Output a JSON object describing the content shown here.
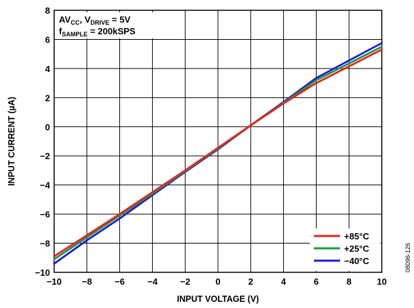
{
  "chart_data": {
    "type": "line",
    "title": "",
    "xlabel": "INPUT VOLTAGE (V)",
    "ylabel": "INPUT CURRENT (µA)",
    "xlim": [
      -10,
      10
    ],
    "ylim": [
      -10,
      8
    ],
    "x_ticks": [
      "−10",
      "−8",
      "−6",
      "−4",
      "−2",
      "0",
      "2",
      "4",
      "6",
      "8",
      "10"
    ],
    "y_ticks": [
      "8",
      "6",
      "4",
      "2",
      "0",
      "−2",
      "−4",
      "−6",
      "−8",
      "−10"
    ],
    "x_tick_values": [
      -10,
      -8,
      -6,
      -4,
      -2,
      0,
      2,
      4,
      6,
      8,
      10
    ],
    "y_tick_values": [
      8,
      6,
      4,
      2,
      0,
      -2,
      -4,
      -6,
      -8,
      -10
    ],
    "grid": true,
    "legend_position": "bottom-right",
    "annotation": {
      "line1_main": "AV",
      "line1_sub": "CC",
      "line1_mid": ", V",
      "line1_sub2": "DRIVE",
      "line1_end": " = 5V",
      "line2_main": "f",
      "line2_sub": "SAMPLE",
      "line2_end": " = 200kSPS"
    },
    "series": [
      {
        "name": "+85°C",
        "color": "#e8231f",
        "x": [
          -10,
          -8,
          -6,
          -4,
          -2,
          0,
          2,
          4,
          6,
          8,
          10
        ],
        "y": [
          -8.9,
          -7.45,
          -6.0,
          -4.5,
          -3.0,
          -1.45,
          0.1,
          1.6,
          3.0,
          4.15,
          5.3
        ]
      },
      {
        "name": "+25°C",
        "color": "#1a9a3a",
        "x": [
          -10,
          -8,
          -6,
          -4,
          -2,
          0,
          2,
          4,
          6,
          8,
          10
        ],
        "y": [
          -9.1,
          -7.6,
          -6.1,
          -4.6,
          -3.05,
          -1.5,
          0.1,
          1.65,
          3.2,
          4.35,
          5.5
        ]
      },
      {
        "name": "−40°C",
        "color": "#1a1adc",
        "x": [
          -10,
          -8,
          -6,
          -4,
          -2,
          0,
          2,
          4,
          6,
          8,
          10
        ],
        "y": [
          -9.4,
          -7.8,
          -6.3,
          -4.7,
          -3.1,
          -1.55,
          0.1,
          1.7,
          3.35,
          4.55,
          5.75
        ]
      }
    ]
  },
  "figure_id": "08096-126"
}
